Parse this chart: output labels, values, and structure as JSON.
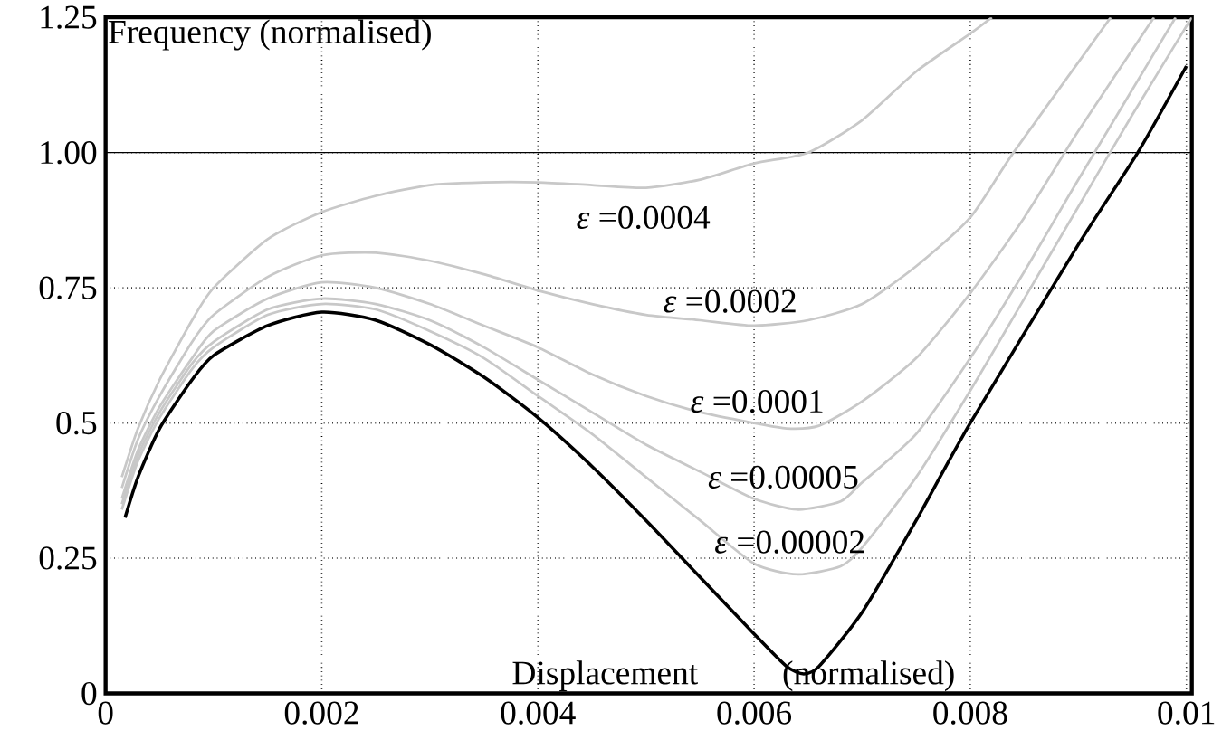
{
  "chart_data": {
    "type": "line",
    "xlabel": "Displacement (normalised)",
    "ylabel": "Frequency (normalised)",
    "xlim": [
      0,
      0.01005
    ],
    "ylim": [
      0,
      1.25
    ],
    "xticks": [
      0,
      0.002,
      0.004,
      0.006,
      0.008,
      0.01
    ],
    "yticks": [
      0,
      0.25,
      0.5,
      0.75,
      {
        "value": 1.0,
        "label": "1.00"
      },
      1.25
    ],
    "grid": true,
    "ref_lines": [
      {
        "axis": "y",
        "value": 1.0,
        "color": "#000000",
        "line_style": "solid"
      }
    ],
    "series": [
      {
        "color": "#c8c8c8",
        "x": [
          0.00015,
          0.0003,
          0.0005,
          0.0008,
          0.001,
          0.0015,
          0.002,
          0.0025,
          0.003,
          0.0035,
          0.004,
          0.0045,
          0.005,
          0.0055,
          0.006,
          0.0065,
          0.007,
          0.0075,
          0.008,
          0.0082
        ],
        "values": [
          0.4,
          0.49,
          0.58,
          0.69,
          0.75,
          0.84,
          0.89,
          0.92,
          0.94,
          0.945,
          0.945,
          0.94,
          0.935,
          0.95,
          0.98,
          1.0,
          1.06,
          1.15,
          1.22,
          1.25
        ]
      },
      {
        "color": "#c8c8c8",
        "x": [
          0.00015,
          0.0003,
          0.0005,
          0.0008,
          0.001,
          0.0015,
          0.002,
          0.0025,
          0.003,
          0.0035,
          0.004,
          0.0045,
          0.005,
          0.0055,
          0.006,
          0.0065,
          0.007,
          0.0075,
          0.008,
          0.0084,
          0.0093
        ],
        "values": [
          0.38,
          0.47,
          0.55,
          0.65,
          0.7,
          0.77,
          0.81,
          0.815,
          0.8,
          0.775,
          0.745,
          0.72,
          0.7,
          0.69,
          0.68,
          0.69,
          0.72,
          0.79,
          0.88,
          1.0,
          1.25
        ]
      },
      {
        "color": "#c8c8c8",
        "x": [
          0.00015,
          0.0003,
          0.0005,
          0.0008,
          0.001,
          0.0015,
          0.002,
          0.0025,
          0.003,
          0.0035,
          0.004,
          0.0045,
          0.005,
          0.0055,
          0.006,
          0.0063,
          0.0066,
          0.007,
          0.0075,
          0.008,
          0.0085,
          0.009,
          0.0097
        ],
        "values": [
          0.36,
          0.45,
          0.53,
          0.62,
          0.67,
          0.73,
          0.76,
          0.75,
          0.72,
          0.68,
          0.64,
          0.59,
          0.55,
          0.52,
          0.5,
          0.49,
          0.495,
          0.54,
          0.62,
          0.74,
          0.88,
          1.04,
          1.25
        ]
      },
      {
        "color": "#c8c8c8",
        "x": [
          0.00015,
          0.0003,
          0.0005,
          0.0008,
          0.001,
          0.0015,
          0.002,
          0.0025,
          0.003,
          0.0035,
          0.004,
          0.0045,
          0.005,
          0.0055,
          0.006,
          0.0064,
          0.0068,
          0.007,
          0.0075,
          0.008,
          0.0085,
          0.009,
          0.0099
        ],
        "values": [
          0.35,
          0.44,
          0.52,
          0.61,
          0.65,
          0.71,
          0.73,
          0.72,
          0.69,
          0.64,
          0.58,
          0.52,
          0.46,
          0.41,
          0.36,
          0.34,
          0.355,
          0.39,
          0.48,
          0.62,
          0.78,
          0.95,
          1.25
        ]
      },
      {
        "color": "#c8c8c8",
        "x": [
          0.00015,
          0.0003,
          0.0005,
          0.0008,
          0.001,
          0.0015,
          0.002,
          0.0025,
          0.003,
          0.0035,
          0.004,
          0.0045,
          0.005,
          0.0055,
          0.006,
          0.0064,
          0.0068,
          0.007,
          0.0075,
          0.008,
          0.0085,
          0.009,
          0.0095,
          0.01005
        ],
        "values": [
          0.34,
          0.43,
          0.51,
          0.6,
          0.64,
          0.7,
          0.72,
          0.71,
          0.67,
          0.62,
          0.55,
          0.48,
          0.4,
          0.32,
          0.24,
          0.22,
          0.235,
          0.27,
          0.4,
          0.56,
          0.73,
          0.9,
          1.07,
          1.25
        ]
      },
      {
        "color": "#000000",
        "x": [
          0.00018,
          0.0003,
          0.0005,
          0.0008,
          0.001,
          0.0015,
          0.002,
          0.0025,
          0.003,
          0.0035,
          0.004,
          0.0045,
          0.005,
          0.0055,
          0.006,
          0.0063,
          0.00646,
          0.0066,
          0.007,
          0.0075,
          0.008,
          0.009,
          0.00955,
          0.01
        ],
        "values": [
          0.325,
          0.4,
          0.49,
          0.58,
          0.625,
          0.68,
          0.705,
          0.69,
          0.645,
          0.585,
          0.51,
          0.42,
          0.32,
          0.215,
          0.11,
          0.05,
          0.036,
          0.05,
          0.15,
          0.32,
          0.5,
          0.83,
          1.0,
          1.16
        ]
      }
    ],
    "annotations": [
      "*ε* =0.0004",
      "*ε* =0.0002",
      "*ε* =0.0001",
      "*ε* =0.00005",
      "*ε* =0.00002"
    ]
  }
}
